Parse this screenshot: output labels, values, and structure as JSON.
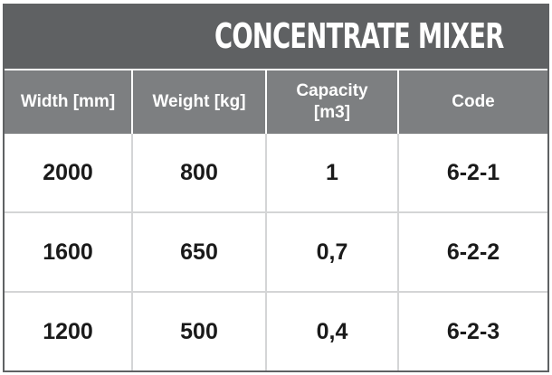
{
  "title": "CONCENTRATE MIXER",
  "columns": [
    "Width [mm]",
    "Weight [kg]",
    "Capacity\n[m3]",
    "Code"
  ],
  "rows": [
    [
      "2000",
      "800",
      "1",
      "6-2-1"
    ],
    [
      "1600",
      "650",
      "0,7",
      "6-2-2"
    ],
    [
      "1200",
      "500",
      "0,4",
      "6-2-3"
    ]
  ],
  "colors": {
    "title_background": "#5f6163",
    "header_background": "#7d7f81",
    "header_text": "#ffffff",
    "cell_text": "#1a1a1a",
    "grid_lines": "#d4d5d6"
  }
}
